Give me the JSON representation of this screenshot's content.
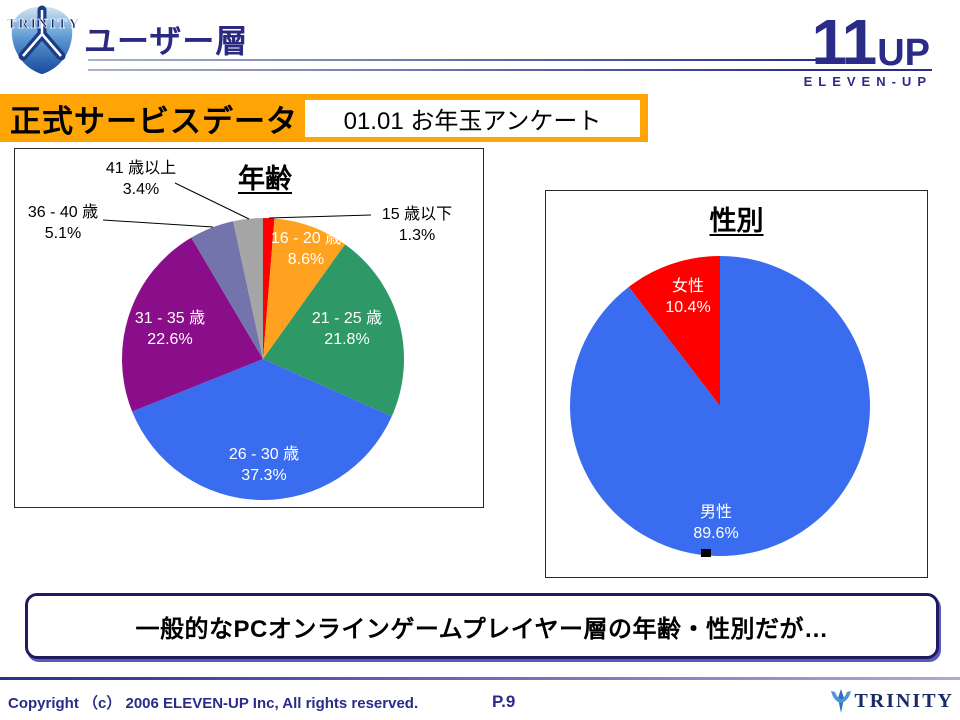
{
  "header": {
    "title": "ユーザー層",
    "trinity_logo_text": "TRINITY",
    "elevenup_logo": {
      "numeral": "11",
      "up": "UP",
      "name": "ELEVEN-UP"
    }
  },
  "banner": {
    "label": "正式サービスデータ",
    "tag": "01.01 お年玉アンケート",
    "bg_color": "#FFA405"
  },
  "chart_data": [
    {
      "type": "pie",
      "title": "年齢",
      "legend": "none",
      "start_angle_deg": 0,
      "direction": "clockwise",
      "slices": [
        {
          "label": "15 歳以下",
          "value": 1.3,
          "display": "1.3%",
          "color": "#FF0000",
          "label_placement": "outside-right"
        },
        {
          "label": "16 - 20 歳",
          "value": 8.6,
          "display": "8.6%",
          "color": "#FFA21F",
          "label_placement": "inside"
        },
        {
          "label": "21 - 25 歳",
          "value": 21.8,
          "display": "21.8%",
          "color": "#2E9966",
          "label_placement": "inside"
        },
        {
          "label": "26 - 30 歳",
          "value": 37.3,
          "display": "37.3%",
          "color": "#3A6CF0",
          "label_placement": "inside"
        },
        {
          "label": "31 - 35 歳",
          "value": 22.6,
          "display": "22.6%",
          "color": "#8A0D8A",
          "label_placement": "inside"
        },
        {
          "label": "36 - 40 歳",
          "value": 5.1,
          "display": "5.1%",
          "color": "#7474AC",
          "label_placement": "outside-left"
        },
        {
          "label": "41 歳以上",
          "value": 3.4,
          "display": "3.4%",
          "color": "#A5A5A5",
          "label_placement": "outside-top"
        }
      ]
    },
    {
      "type": "pie",
      "title": "性別",
      "legend": "none",
      "start_angle_deg": 0,
      "direction": "clockwise",
      "slices": [
        {
          "label": "男性",
          "value": 89.6,
          "display": "89.6%",
          "color": "#3A6CF0",
          "label_placement": "inside"
        },
        {
          "label": "女性",
          "value": 10.4,
          "display": "10.4%",
          "color": "#FF0000",
          "label_placement": "inside"
        }
      ]
    }
  ],
  "conclusion": {
    "text": "一般的なPCオンラインゲームプレイヤー層の年齢・性別だが…"
  },
  "footer": {
    "copyright": "Copyright （c） 2006 ELEVEN-UP Inc, All rights reserved.",
    "page": "P.9",
    "brand": "TRINITY"
  }
}
